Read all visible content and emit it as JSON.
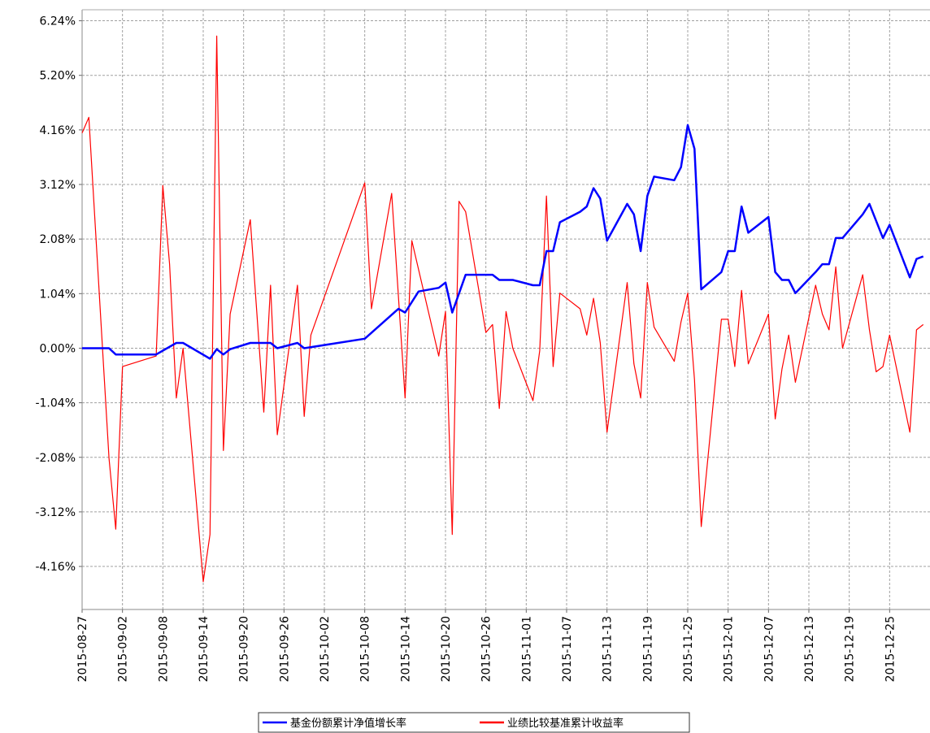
{
  "chart_data": {
    "type": "line",
    "xlim": [
      "2015-08-27",
      "2015-12-31"
    ],
    "xticks": [
      "2015-08-27",
      "2015-09-02",
      "2015-09-08",
      "2015-09-14",
      "2015-09-20",
      "2015-09-26",
      "2015-10-02",
      "2015-10-08",
      "2015-10-14",
      "2015-10-20",
      "2015-10-26",
      "2015-11-01",
      "2015-11-07",
      "2015-11-13",
      "2015-11-19",
      "2015-11-25",
      "2015-12-01",
      "2015-12-07",
      "2015-12-13",
      "2015-12-19",
      "2015-12-25"
    ],
    "ylim": [
      -4.98,
      6.45
    ],
    "yticks": [
      {
        "value": -4.16,
        "label": "-4.16%"
      },
      {
        "value": -3.12,
        "label": "-3.12%"
      },
      {
        "value": -2.08,
        "label": "-2.08%"
      },
      {
        "value": -1.04,
        "label": "-1.04%"
      },
      {
        "value": 0,
        "label": "0.00%"
      },
      {
        "value": 1.04,
        "label": "1.04%"
      },
      {
        "value": 2.08,
        "label": "2.08%"
      },
      {
        "value": 3.12,
        "label": "3.12%"
      },
      {
        "value": 4.16,
        "label": "4.16%"
      },
      {
        "value": 5.2,
        "label": "5.20%"
      },
      {
        "value": 6.24,
        "label": "6.24%"
      }
    ],
    "grid": true,
    "legend": "bottom",
    "series": [
      {
        "name": "基金份额累计净值增长率",
        "color": "#0000ff",
        "x": [
          "2015-08-27",
          "2015-08-31",
          "2015-09-01",
          "2015-09-07",
          "2015-09-10",
          "2015-09-11",
          "2015-09-15",
          "2015-09-16",
          "2015-09-17",
          "2015-09-18",
          "2015-09-21",
          "2015-09-24",
          "2015-09-25",
          "2015-09-28",
          "2015-09-29",
          "2015-10-08",
          "2015-10-13",
          "2015-10-14",
          "2015-10-16",
          "2015-10-19",
          "2015-10-20",
          "2015-10-21",
          "2015-10-23",
          "2015-10-27",
          "2015-10-28",
          "2015-10-30",
          "2015-11-02",
          "2015-11-03",
          "2015-11-04",
          "2015-11-05",
          "2015-11-06",
          "2015-11-09",
          "2015-11-10",
          "2015-11-11",
          "2015-11-12",
          "2015-11-13",
          "2015-11-16",
          "2015-11-17",
          "2015-11-18",
          "2015-11-19",
          "2015-11-20",
          "2015-11-23",
          "2015-11-24",
          "2015-11-25",
          "2015-11-26",
          "2015-11-27",
          "2015-11-30",
          "2015-12-01",
          "2015-12-02",
          "2015-12-03",
          "2015-12-04",
          "2015-12-07",
          "2015-12-08",
          "2015-12-09",
          "2015-12-10",
          "2015-12-11",
          "2015-12-14",
          "2015-12-15",
          "2015-12-16",
          "2015-12-17",
          "2015-12-18",
          "2015-12-21",
          "2015-12-22",
          "2015-12-24",
          "2015-12-25",
          "2015-12-28",
          "2015-12-29",
          "2015-12-30"
        ],
        "values": [
          0.0,
          0.0,
          -0.12,
          -0.12,
          0.1,
          0.1,
          -0.2,
          -0.02,
          -0.12,
          -0.02,
          0.1,
          0.1,
          0.0,
          0.1,
          0.0,
          0.18,
          0.75,
          0.68,
          1.08,
          1.15,
          1.25,
          0.68,
          1.4,
          1.4,
          1.3,
          1.3,
          1.2,
          1.2,
          1.85,
          1.85,
          2.4,
          2.6,
          2.7,
          3.05,
          2.85,
          2.05,
          2.75,
          2.55,
          1.85,
          2.9,
          3.27,
          3.2,
          3.45,
          4.25,
          3.8,
          1.12,
          1.45,
          1.85,
          1.85,
          2.7,
          2.2,
          2.5,
          1.45,
          1.3,
          1.3,
          1.05,
          1.45,
          1.6,
          1.6,
          2.1,
          2.1,
          2.55,
          2.75,
          2.1,
          2.35,
          1.35,
          1.7,
          1.75
        ]
      },
      {
        "name": "业绩比较基准累计收益率",
        "color": "#ff0000",
        "x": [
          "2015-08-27",
          "2015-08-28",
          "2015-08-31",
          "2015-09-01",
          "2015-09-02",
          "2015-09-07",
          "2015-09-08",
          "2015-09-09",
          "2015-09-10",
          "2015-09-11",
          "2015-09-14",
          "2015-09-15",
          "2015-09-16",
          "2015-09-17",
          "2015-09-18",
          "2015-09-21",
          "2015-09-23",
          "2015-09-24",
          "2015-09-25",
          "2015-09-28",
          "2015-09-29",
          "2015-09-30",
          "2015-10-08",
          "2015-10-09",
          "2015-10-12",
          "2015-10-14",
          "2015-10-15",
          "2015-10-19",
          "2015-10-20",
          "2015-10-21",
          "2015-10-22",
          "2015-10-23",
          "2015-10-26",
          "2015-10-27",
          "2015-10-28",
          "2015-10-29",
          "2015-10-30",
          "2015-11-02",
          "2015-11-03",
          "2015-11-04",
          "2015-11-05",
          "2015-11-06",
          "2015-11-09",
          "2015-11-10",
          "2015-11-11",
          "2015-11-12",
          "2015-11-13",
          "2015-11-16",
          "2015-11-17",
          "2015-11-18",
          "2015-11-19",
          "2015-11-20",
          "2015-11-23",
          "2015-11-24",
          "2015-11-25",
          "2015-11-26",
          "2015-11-27",
          "2015-11-30",
          "2015-12-01",
          "2015-12-02",
          "2015-12-03",
          "2015-12-04",
          "2015-12-07",
          "2015-12-08",
          "2015-12-09",
          "2015-12-10",
          "2015-12-11",
          "2015-12-14",
          "2015-12-15",
          "2015-12-16",
          "2015-12-17",
          "2015-12-18",
          "2015-12-21",
          "2015-12-22",
          "2015-12-23",
          "2015-12-24",
          "2015-12-25",
          "2015-12-28",
          "2015-12-29",
          "2015-12-30"
        ],
        "values": [
          4.1,
          4.4,
          -2.1,
          -3.45,
          -0.35,
          -0.15,
          3.1,
          1.6,
          -0.95,
          0.0,
          -4.45,
          -3.55,
          5.95,
          -1.95,
          0.65,
          2.45,
          -1.22,
          1.2,
          -1.65,
          1.2,
          -1.3,
          0.25,
          3.15,
          0.75,
          2.95,
          -0.95,
          2.05,
          -0.15,
          0.7,
          -3.55,
          2.8,
          2.6,
          0.3,
          0.45,
          -1.15,
          0.7,
          0.0,
          -1.0,
          -0.05,
          2.9,
          -0.35,
          1.05,
          0.75,
          0.25,
          0.95,
          0.1,
          -1.6,
          1.25,
          -0.3,
          -0.95,
          1.25,
          0.4,
          -0.25,
          0.5,
          1.05,
          -0.6,
          -3.4,
          0.55,
          0.55,
          -0.35,
          1.1,
          -0.3,
          0.65,
          -1.35,
          -0.4,
          0.25,
          -0.65,
          1.2,
          0.65,
          0.35,
          1.55,
          0.0,
          1.4,
          0.35,
          -0.45,
          -0.35,
          0.25,
          -1.6,
          0.35,
          0.45
        ]
      }
    ]
  }
}
